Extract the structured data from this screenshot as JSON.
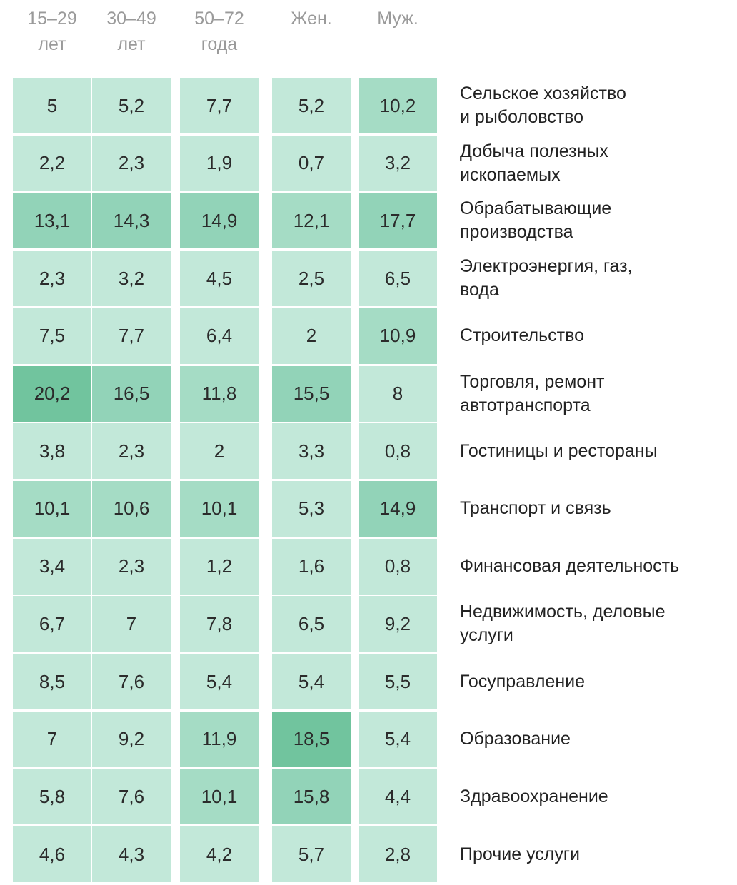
{
  "chart_data": {
    "type": "heatmap",
    "columns": [
      {
        "line1": "15–29",
        "line2": "лет"
      },
      {
        "line1": "30–49",
        "line2": "лет"
      },
      {
        "line1": "50–72",
        "line2": "года"
      },
      {
        "line1": "Жен.",
        "line2": ""
      },
      {
        "line1": "Муж.",
        "line2": ""
      }
    ],
    "rows": [
      {
        "label": "Сельское хозяйство\nи рыболовство",
        "values": [
          "5",
          "5,2",
          "7,7",
          "5,2",
          "10,2"
        ]
      },
      {
        "label": "Добыча полезных\nископаемых",
        "values": [
          "2,2",
          "2,3",
          "1,9",
          "0,7",
          "3,2"
        ]
      },
      {
        "label": "Обрабатывающие\nпроизводства",
        "values": [
          "13,1",
          "14,3",
          "14,9",
          "12,1",
          "17,7"
        ]
      },
      {
        "label": "Электроэнергия, газ,\nвода",
        "values": [
          "2,3",
          "3,2",
          "4,5",
          "2,5",
          "6,5"
        ]
      },
      {
        "label": "Строительство",
        "values": [
          "7,5",
          "7,7",
          "6,4",
          "2",
          "10,9"
        ]
      },
      {
        "label": "Торговля, ремонт\nавтотранспорта",
        "values": [
          "20,2",
          "16,5",
          "11,8",
          "15,5",
          "8"
        ]
      },
      {
        "label": "Гостиницы и рестораны",
        "values": [
          "3,8",
          "2,3",
          "2",
          "3,3",
          "0,8"
        ]
      },
      {
        "label": "Транспорт и связь",
        "values": [
          "10,1",
          "10,6",
          "10,1",
          "5,3",
          "14,9"
        ]
      },
      {
        "label": "Финансовая деятельность",
        "values": [
          "3,4",
          "2,3",
          "1,2",
          "1,6",
          "0,8"
        ]
      },
      {
        "label": "Недвижимость, деловые\nуслуги",
        "values": [
          "6,7",
          "7",
          "7,8",
          "6,5",
          "9,2"
        ]
      },
      {
        "label": "Госуправление",
        "values": [
          "8,5",
          "7,6",
          "5,4",
          "5,4",
          "5,5"
        ]
      },
      {
        "label": "Образование",
        "values": [
          "7",
          "9,2",
          "11,9",
          "18,5",
          "5,4"
        ]
      },
      {
        "label": "Здравоохранение",
        "values": [
          "5,8",
          "7,6",
          "10,1",
          "15,8",
          "4,4"
        ]
      },
      {
        "label": "Прочие услуги",
        "values": [
          "4,6",
          "4,3",
          "4,2",
          "5,7",
          "2,8"
        ]
      }
    ],
    "color_scale": [
      {
        "min": 0,
        "color": "#c2e8d9"
      },
      {
        "min": 10,
        "color": "#a5dcc5"
      },
      {
        "min": 13,
        "color": "#92d3b8"
      },
      {
        "min": 18,
        "color": "#71c49e"
      }
    ]
  }
}
